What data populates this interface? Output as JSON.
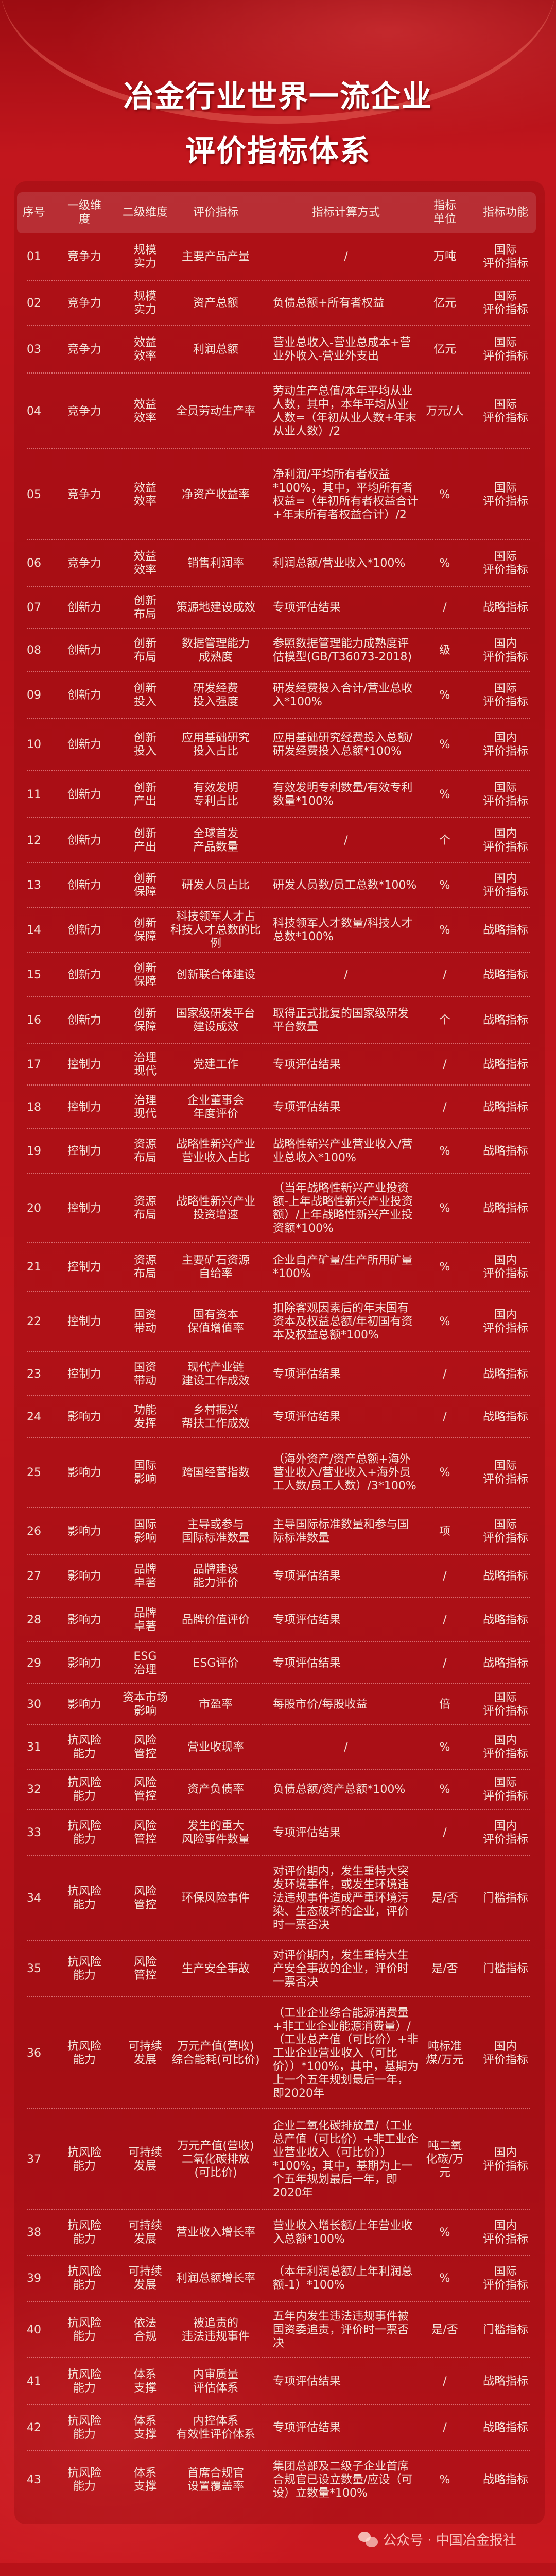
{
  "title": {
    "line1": "冶金行业世界一流企业",
    "line2": "评价指标体系"
  },
  "colors": {
    "background": "#c2161d",
    "text": "#f3e2d7",
    "title": "#ffffff"
  },
  "table": {
    "headers": [
      "序号",
      "一级维度",
      "二级维度",
      "评价指标",
      "指标计算方式",
      "指标\n单位",
      "指标功能"
    ],
    "rows": [
      [
        "01",
        "竞争力",
        "规模\n实力",
        "主要产品产量",
        "/",
        "万吨",
        "国际\n评价指标"
      ],
      [
        "02",
        "竞争力",
        "规模\n实力",
        "资产总额",
        "负债总额+所有者权益",
        "亿元",
        "国际\n评价指标"
      ],
      [
        "03",
        "竞争力",
        "效益\n效率",
        "利润总额",
        "营业总收入-营业总成本+营业外收入-营业外支出",
        "亿元",
        "国际\n评价指标"
      ],
      [
        "04",
        "竞争力",
        "效益\n效率",
        "全员劳动生产率",
        "劳动生产总值/本年平均从业人数，其中，本年平均从业人数=（年初从业人数+年末从业人数）/2",
        "万元/人",
        "国际\n评价指标"
      ],
      [
        "05",
        "竞争力",
        "效益\n效率",
        "净资产收益率",
        "净利润/平均所有者权益*100%，其中，平均所有者权益=（年初所有者权益合计+年末所有者权益合计）/2",
        "%",
        "国际\n评价指标"
      ],
      [
        "06",
        "竞争力",
        "效益\n效率",
        "销售利润率",
        "利润总额/营业收入*100%",
        "%",
        "国际\n评价指标"
      ],
      [
        "07",
        "创新力",
        "创新\n布局",
        "策源地建设成效",
        "专项评估结果",
        "/",
        "战略指标"
      ],
      [
        "08",
        "创新力",
        "创新\n布局",
        "数据管理能力\n成熟度",
        "参照数据管理能力成熟度评估模型(GB/T36073-2018)",
        "级",
        "国内\n评价指标"
      ],
      [
        "09",
        "创新力",
        "创新\n投入",
        "研发经费\n投入强度",
        "研发经费投入合计/营业总收入*100%",
        "%",
        "国际\n评价指标"
      ],
      [
        "10",
        "创新力",
        "创新\n投入",
        "应用基础研究\n投入占比",
        "应用基础研究经费投入总额/研发经费投入总额*100%",
        "%",
        "国内\n评价指标"
      ],
      [
        "11",
        "创新力",
        "创新\n产出",
        "有效发明\n专利占比",
        "有效发明专利数量/有效专利数量*100%",
        "%",
        "国际\n评价指标"
      ],
      [
        "12",
        "创新力",
        "创新\n产出",
        "全球首发\n产品数量",
        "/",
        "个",
        "国内\n评价指标"
      ],
      [
        "13",
        "创新力",
        "创新\n保障",
        "研发人员占比",
        "研发人员数/员工总数*100%",
        "%",
        "国内\n评价指标"
      ],
      [
        "14",
        "创新力",
        "创新\n保障",
        "科技领军人才占\n科技人才总数的比例",
        "科技领军人才数量/科技人才总数*100%",
        "%",
        "战略指标"
      ],
      [
        "15",
        "创新力",
        "创新\n保障",
        "创新联合体建设",
        "/",
        "/",
        "战略指标"
      ],
      [
        "16",
        "创新力",
        "创新\n保障",
        "国家级研发平台\n建设成效",
        "取得正式批复的国家级研发平台数量",
        "个",
        "战略指标"
      ],
      [
        "17",
        "控制力",
        "治理\n现代",
        "党建工作",
        "专项评估结果",
        "/",
        "战略指标"
      ],
      [
        "18",
        "控制力",
        "治理\n现代",
        "企业董事会\n年度评价",
        "专项评估结果",
        "/",
        "战略指标"
      ],
      [
        "19",
        "控制力",
        "资源\n布局",
        "战略性新兴产业\n营业收入占比",
        "战略性新兴产业营业收入/营业总收入*100%",
        "%",
        "战略指标"
      ],
      [
        "20",
        "控制力",
        "资源\n布局",
        "战略性新兴产业\n投资增速",
        "（当年战略性新兴产业投资额-上年战略性新兴产业投资额）/上年战略性新兴产业投资额*100%",
        "%",
        "战略指标"
      ],
      [
        "21",
        "控制力",
        "资源\n布局",
        "主要矿石资源\n自给率",
        "企业自产矿量/生产所用矿量*100%",
        "%",
        "国内\n评价指标"
      ],
      [
        "22",
        "控制力",
        "国资\n带动",
        "国有资本\n保值增值率",
        "扣除客观因素后的年末国有资本及权益总额/年初国有资本及权益总额*100%",
        "%",
        "国内\n评价指标"
      ],
      [
        "23",
        "控制力",
        "国资\n带动",
        "现代产业链\n建设工作成效",
        "专项评估结果",
        "/",
        "战略指标"
      ],
      [
        "24",
        "影响力",
        "功能\n发挥",
        "乡村振兴\n帮扶工作成效",
        "专项评估结果",
        "/",
        "战略指标"
      ],
      [
        "25",
        "影响力",
        "国际\n影响",
        "跨国经营指数",
        "（海外资产/资产总额+海外营业收入/营业收入+海外员工人数/员工人数）/3*100%",
        "%",
        "国际\n评价指标"
      ],
      [
        "26",
        "影响力",
        "国际\n影响",
        "主导或参与\n国际标准数量",
        "主导国际标准数量和参与国际标准数量",
        "项",
        "国际\n评价指标"
      ],
      [
        "27",
        "影响力",
        "品牌\n卓著",
        "品牌建设\n能力评价",
        "专项评估结果",
        "/",
        "战略指标"
      ],
      [
        "28",
        "影响力",
        "品牌\n卓著",
        "品牌价值评价",
        "专项评估结果",
        "/",
        "战略指标"
      ],
      [
        "29",
        "影响力",
        "ESG\n治理",
        "ESG评价",
        "专项评估结果",
        "/",
        "战略指标"
      ],
      [
        "30",
        "影响力",
        "资本市场\n影响",
        "市盈率",
        "每股市价/每股收益",
        "倍",
        "国际\n评价指标"
      ],
      [
        "31",
        "抗风险\n能力",
        "风险\n管控",
        "营业收现率",
        "/",
        "%",
        "国内\n评价指标"
      ],
      [
        "32",
        "抗风险\n能力",
        "风险\n管控",
        "资产负债率",
        "负债总额/资产总额*100%",
        "%",
        "国际\n评价指标"
      ],
      [
        "33",
        "抗风险\n能力",
        "风险\n管控",
        "发生的重大\n风险事件数量",
        "专项评估结果",
        "/",
        "国内\n评价指标"
      ],
      [
        "34",
        "抗风险\n能力",
        "风险\n管控",
        "环保风险事件",
        "对评价期内，发生重特大突发环境事件，或发生环境违法违规事件造成严重环境污染、生态破坏的企业，评价时一票否决",
        "是/否",
        "门槛指标"
      ],
      [
        "35",
        "抗风险\n能力",
        "风险\n管控",
        "生产安全事故",
        "对评价期内，发生重特大生产安全事故的企业，评价时一票否决",
        "是/否",
        "门槛指标"
      ],
      [
        "36",
        "抗风险\n能力",
        "可持续\n发展",
        "万元产值(营收)\n综合能耗(可比价)",
        "（工业企业综合能源消费量+非工业企业能源消费量）/（工业总产值（可比价）+非工业企业营业收入（可比价））*100%，其中，基期为上一个五年规划最后一年，即2020年",
        "吨标准\n煤/万元",
        "国内\n评价指标"
      ],
      [
        "37",
        "抗风险\n能力",
        "可持续\n发展",
        "万元产值(营收)\n二氧化碳排放\n(可比价)",
        "企业二氧化碳排放量/（工业总产值（可比价）+非工业企业营业收入（可比价））*100%，其中，基期为上一个五年规划最后一年，即2020年",
        "吨二氧\n化碳/万元",
        "国内\n评价指标"
      ],
      [
        "38",
        "抗风险\n能力",
        "可持续\n发展",
        "营业收入增长率",
        "营业收入增长额/上年营业收入总额*100%",
        "%",
        "国内\n评价指标"
      ],
      [
        "39",
        "抗风险\n能力",
        "可持续\n发展",
        "利润总额增长率",
        "（本年利润总额/上年利润总额-1）*100%",
        "%",
        "国际\n评价指标"
      ],
      [
        "40",
        "抗风险\n能力",
        "依法\n合规",
        "被追责的\n违法违规事件",
        "五年内发生违法违规事件被国资委追责，评价时一票否决",
        "是/否",
        "门槛指标"
      ],
      [
        "41",
        "抗风险\n能力",
        "体系\n支撑",
        "内审质量\n评估体系",
        "专项评估结果",
        "/",
        "战略指标"
      ],
      [
        "42",
        "抗风险\n能力",
        "体系\n支撑",
        "内控体系\n有效性评价体系",
        "专项评估结果",
        "/",
        "战略指标"
      ],
      [
        "43",
        "抗风险\n能力",
        "体系\n支撑",
        "首席合规官\n设置覆盖率",
        "集团总部及二级子企业首席合规官已设立数量/应设（可设）立数量*100%",
        "%",
        "战略指标"
      ]
    ]
  },
  "footer": {
    "icon": "wechat-icon",
    "text": "公众号 · 中国冶金报社"
  }
}
